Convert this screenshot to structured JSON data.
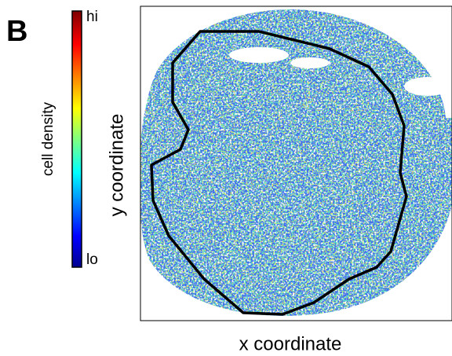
{
  "panel_label": "B",
  "chart_data": {
    "type": "density-map",
    "xlabel": "x coordinate",
    "ylabel": "y coordinate",
    "colorbar": {
      "label": "cell density",
      "max_label": "hi",
      "min_label": "lo"
    }
  }
}
